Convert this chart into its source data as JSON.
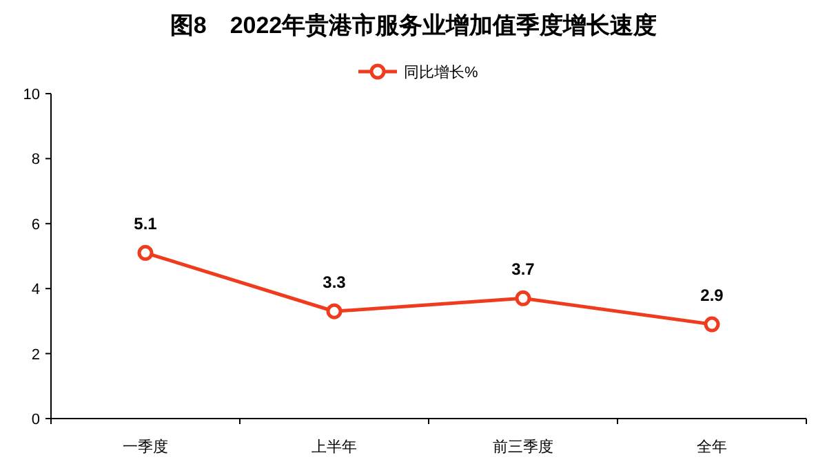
{
  "chart_data": {
    "type": "line",
    "title": "图8　2022年贵港市服务业增加值季度增长速度",
    "categories": [
      "一季度",
      "上半年",
      "前三季度",
      "全年"
    ],
    "series": [
      {
        "name": "同比增长%",
        "color": "#f03c1e",
        "values": [
          5.1,
          3.3,
          3.7,
          2.9
        ]
      }
    ],
    "ylim": [
      0,
      10
    ],
    "yticks": [
      0,
      2,
      4,
      6,
      8,
      10
    ],
    "grid": false,
    "legend": "top",
    "marker": "circle",
    "line_style": "solid",
    "data_labels": true
  }
}
